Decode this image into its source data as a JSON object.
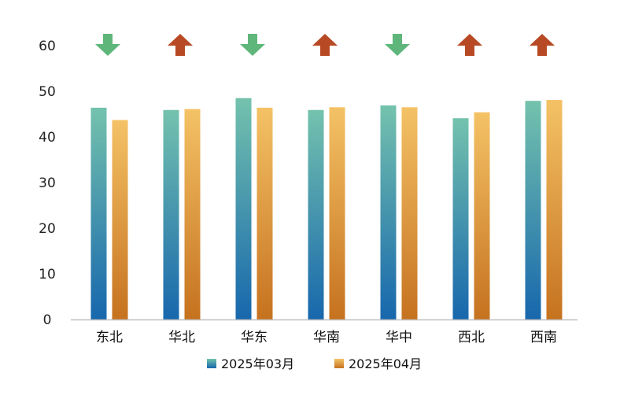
{
  "chart_data": {
    "type": "bar",
    "categories": [
      "东北",
      "华北",
      "华东",
      "华南",
      "华中",
      "西北",
      "西南"
    ],
    "series": [
      {
        "name": "2025年03月",
        "values": [
          46.4,
          45.9,
          48.5,
          45.9,
          46.9,
          44.1,
          47.9
        ]
      },
      {
        "name": "2025年04月",
        "values": [
          43.7,
          46.1,
          46.4,
          46.5,
          46.5,
          45.4,
          48.1
        ]
      }
    ],
    "trend": [
      "down",
      "up",
      "down",
      "up",
      "down",
      "up",
      "up"
    ],
    "yticks": [
      0,
      10,
      20,
      30,
      40,
      50,
      60
    ],
    "ylim": [
      0,
      60
    ],
    "title": "",
    "xlabel": "",
    "ylabel": "",
    "grid": false,
    "legend_position": "bottom"
  },
  "colors": {
    "series1_top": "#74c2ad",
    "series1_bottom": "#1767ad",
    "series2_top": "#f4c266",
    "series2_bottom": "#c6721f",
    "arrow_up": "#b74a24",
    "arrow_down": "#5fb67b",
    "axis": "#bfbfbf"
  },
  "icons": {
    "up": "arrow-up-icon",
    "down": "arrow-down-icon"
  }
}
